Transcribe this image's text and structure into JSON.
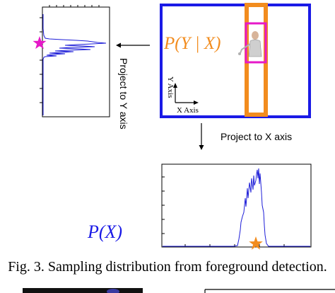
{
  "labels": {
    "p_y_given_x": "P(Y | X)",
    "p_x": "P(X)",
    "project_y": "Project to Y axis",
    "project_x": "Project to X axis",
    "y_axis": "Y Axis",
    "x_axis": "X Axis"
  },
  "caption": "Fig. 3. Sampling distribution from foreground detection.",
  "colors": {
    "frame": "#1a1ae6",
    "column": "#f28c1e",
    "window": "#e619c8",
    "curve": "#1e1ed8",
    "star_magenta": "#e619c8",
    "star_orange": "#f28c1e",
    "math_text": "#1a1ae6"
  },
  "icons": [
    "star-icon",
    "arrow-icon",
    "person-icon"
  ]
}
